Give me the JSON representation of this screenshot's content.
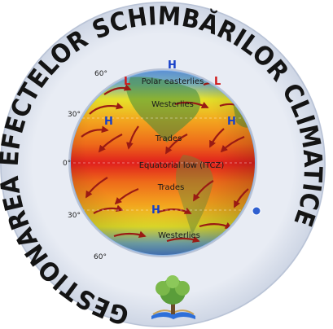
{
  "logo": {
    "ring_text": "GESTIONAREA EFECTELOR SCHIMBĂRILOR CLIMATICE",
    "colors": {
      "ring": "#e2e7f1",
      "ring_text": "#141414",
      "globe_red": "#e0201b",
      "globe_orange": "#f07a18",
      "globe_yellow": "#f2e41e",
      "globe_blue": "#4a88d8",
      "arrow": "#9a1a14",
      "label": "#1a1a1a",
      "high": "#1740c8",
      "low": "#d01818"
    },
    "globe": {
      "labels": {
        "polar_easterlies": "Polar easterlies",
        "westerlies_north": "Westerlies",
        "trades_north": "Trades",
        "equatorial_low": "Equatorial low (ITCZ)",
        "trades_south": "Trades",
        "westerlies_south": "Westerlies"
      },
      "latitudes": {
        "lat_60n": "60°",
        "lat_30n": "30°",
        "lat_0": "0°",
        "lat_30s": "30°",
        "lat_60s": "60°"
      },
      "pressure_marks": {
        "high": "H",
        "low": "L"
      }
    },
    "emblem": "tree-book-emblem"
  }
}
